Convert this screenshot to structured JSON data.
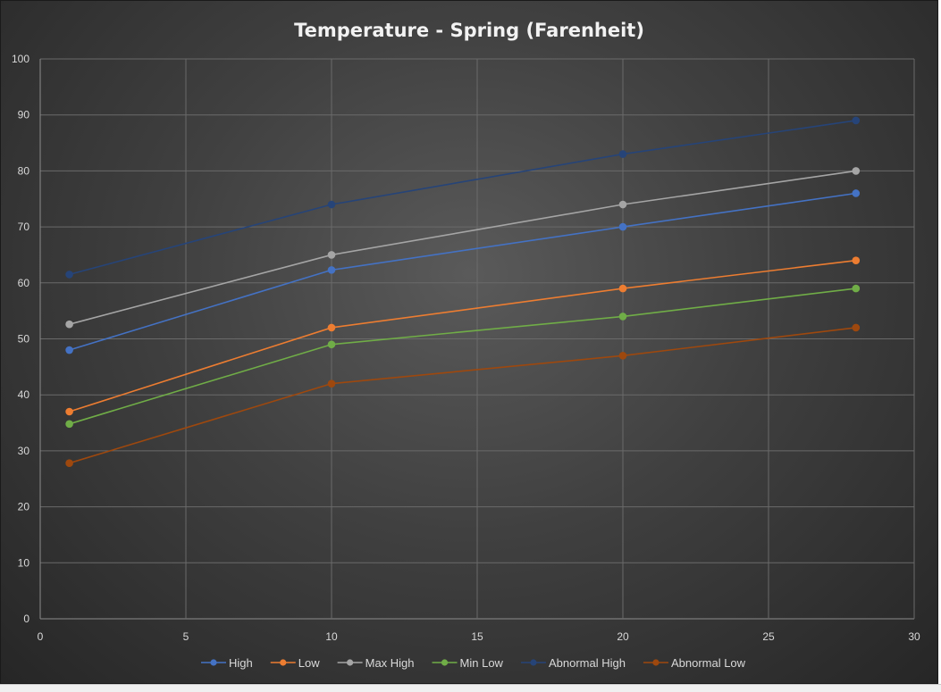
{
  "chart_data": {
    "type": "line",
    "title": "Temperature - Spring (Farenheit)",
    "xlabel": "",
    "ylabel": "",
    "xlim": [
      0,
      30
    ],
    "ylim": [
      0,
      100
    ],
    "x_ticks": [
      "0",
      "5",
      "10",
      "15",
      "20",
      "25",
      "30"
    ],
    "y_ticks": [
      "0",
      "10",
      "20",
      "30",
      "40",
      "50",
      "60",
      "70",
      "80",
      "90",
      "100"
    ],
    "x": [
      1,
      10,
      20,
      28
    ],
    "grid": true,
    "legend_position": "bottom",
    "series": [
      {
        "name": "High",
        "color": "#4472c4",
        "values": [
          48,
          62.3,
          70,
          76
        ]
      },
      {
        "name": "Low",
        "color": "#ed7d31",
        "values": [
          37,
          52,
          59,
          64
        ]
      },
      {
        "name": "Max High",
        "color": "#a5a5a5",
        "values": [
          52.6,
          65,
          74,
          80
        ]
      },
      {
        "name": "Min Low",
        "color": "#70ad47",
        "values": [
          34.8,
          49,
          54,
          59
        ]
      },
      {
        "name": "Abnormal High",
        "color": "#264478",
        "values": [
          61.5,
          74,
          83,
          89
        ]
      },
      {
        "name": "Abnormal Low",
        "color": "#9e480e",
        "values": [
          27.8,
          42,
          47,
          52
        ]
      }
    ]
  }
}
